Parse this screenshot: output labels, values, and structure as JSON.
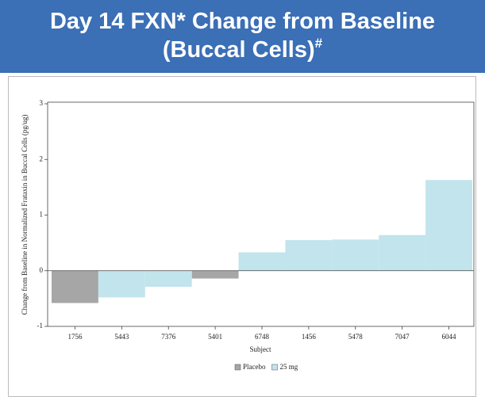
{
  "header": {
    "title_lines": [
      "Day 14 FXN* Change from Baseline",
      "(Buccal Cells)"
    ],
    "title_superscript": "#"
  },
  "chart_data": {
    "type": "bar",
    "categories": [
      "1756",
      "5443",
      "7376",
      "5401",
      "6748",
      "1456",
      "5478",
      "7047",
      "6044"
    ],
    "series": [
      {
        "name": "Placebo",
        "color": "#a6a6a6",
        "values": [
          -0.58,
          null,
          null,
          -0.14,
          null,
          null,
          null,
          null,
          null
        ]
      },
      {
        "name": "25 mg",
        "color": "#c2e4ec",
        "values": [
          null,
          -0.48,
          -0.29,
          null,
          0.33,
          0.55,
          0.56,
          0.64,
          1.63
        ]
      }
    ],
    "ylim": [
      -1,
      3
    ],
    "yticks": [
      -1,
      0,
      1,
      2,
      3
    ],
    "x_label": "Subject",
    "y_label": "Change from Baseline in Normalized Frataxin in Buccal Cells (pg/ug)",
    "legend": "bottom"
  }
}
